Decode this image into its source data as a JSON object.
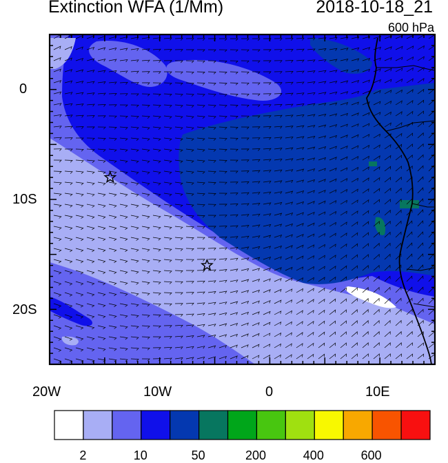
{
  "title": "Extinction WFA (1/Mm)",
  "valid_time": "2018-10-18_21",
  "level": "600 hPa",
  "lat_labels": [
    {
      "text": "0",
      "lat": 0
    },
    {
      "text": "10S",
      "lat": -10
    },
    {
      "text": "20S",
      "lat": -20
    }
  ],
  "lon_labels": [
    {
      "text": "20W",
      "lon": -20
    },
    {
      "text": "10W",
      "lon": -10
    },
    {
      "text": "0",
      "lon": 0
    },
    {
      "text": "10E",
      "lon": 10
    }
  ],
  "extent": {
    "lon": [
      -20,
      15
    ],
    "lat": [
      -25,
      5
    ]
  },
  "colorbar": {
    "colors": [
      "#ffffff",
      "#a8aef5",
      "#6464f0",
      "#1010ea",
      "#0438b0",
      "#07765f",
      "#00a61a",
      "#48c610",
      "#a0e010",
      "#f8f800",
      "#f8a800",
      "#f85400",
      "#f81010"
    ],
    "labels": [
      {
        "text": "2",
        "after_box": 1
      },
      {
        "text": "10",
        "after_box": 3
      },
      {
        "text": "50",
        "after_box": 5
      },
      {
        "text": "200",
        "after_box": 7
      },
      {
        "text": "400",
        "after_box": 9
      },
      {
        "text": "600",
        "after_box": 11
      }
    ]
  },
  "markers": [
    {
      "name": "star-marker-1",
      "lon": -14.5,
      "lat": -8.0
    },
    {
      "name": "star-marker-2",
      "lon": -5.7,
      "lat": -16.0
    }
  ]
}
